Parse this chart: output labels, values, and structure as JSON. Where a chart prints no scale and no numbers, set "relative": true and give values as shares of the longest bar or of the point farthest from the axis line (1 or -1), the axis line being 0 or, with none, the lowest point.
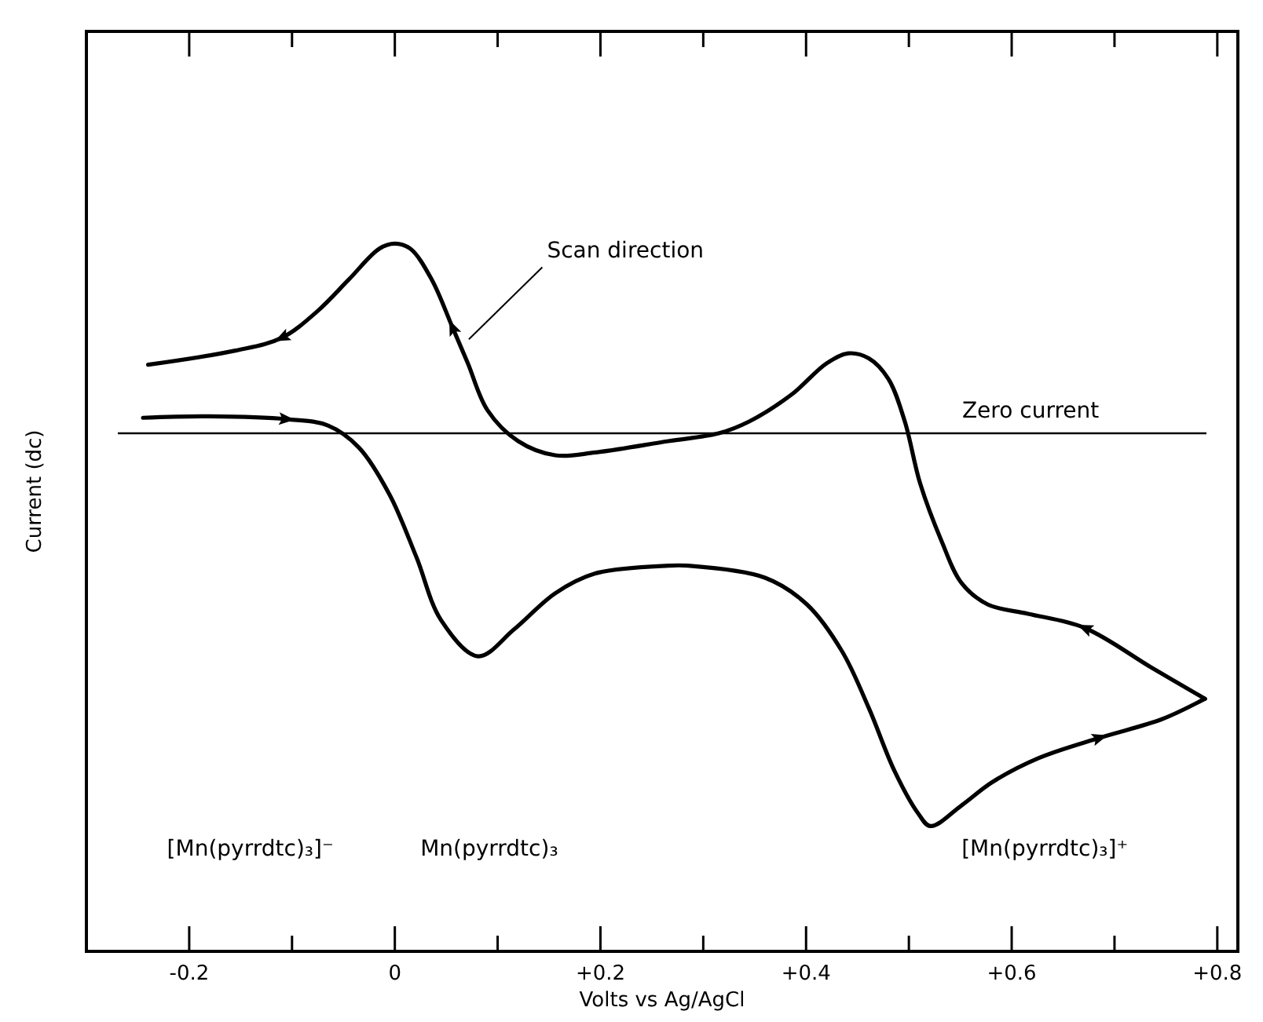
{
  "chart_data": {
    "type": "line",
    "relative": true,
    "xlabel": "Volts vs Ag/AgCl",
    "ylabel": "Current (dc)",
    "xlim": [
      -0.3,
      0.82
    ],
    "xticks": [
      {
        "value": -0.2,
        "label": "-0.2"
      },
      {
        "value": -0.1,
        "label": null
      },
      0,
      {
        "value": 0.1,
        "label": null
      },
      {
        "value": 0.2,
        "label": "+0.2"
      },
      {
        "value": 0.3,
        "label": null
      },
      {
        "value": 0.4,
        "label": "+0.4"
      },
      {
        "value": 0.5,
        "label": null
      },
      {
        "value": 0.6,
        "label": "+0.6"
      },
      {
        "value": 0.7,
        "label": null
      },
      {
        "value": 0.8,
        "label": "+0.8"
      }
    ],
    "series": [
      {
        "color": "#000000",
        "x": [
          0.788,
          0.736,
          0.671,
          0.616,
          0.577,
          0.551,
          0.532,
          0.511,
          0.496,
          0.48,
          0.461,
          0.441,
          0.42,
          0.386,
          0.345,
          0.315,
          0.266,
          0.195,
          0.156,
          0.12,
          0.09,
          0.071,
          0.056,
          0.036,
          0.015,
          0,
          -0.015,
          -0.045,
          -0.075,
          -0.11,
          -0.155,
          -0.24
        ],
        "values": [
          0.357,
          0.401,
          0.457,
          0.477,
          0.49,
          0.521,
          0.579,
          0.661,
          0.749,
          0.809,
          0.838,
          0.845,
          0.831,
          0.787,
          0.749,
          0.732,
          0.721,
          0.705,
          0.701,
          0.721,
          0.765,
          0.831,
          0.882,
          0.949,
          0.993,
          1,
          0.993,
          0.949,
          0.905,
          0.867,
          0.849,
          0.829
        ]
      },
      {
        "color": "#000000",
        "x": [
          -0.245,
          -0.18,
          -0.105,
          -0.065,
          -0.035,
          -0.005,
          0.021,
          0.045,
          0.081,
          0.116,
          0.156,
          0.195,
          0.266,
          0.285,
          0.36,
          0.401,
          0.435,
          0.461,
          0.486,
          0.509,
          0.521,
          0.551,
          0.581,
          0.626,
          0.686,
          0.746,
          0.788
        ],
        "values": [
          0.754,
          0.756,
          0.752,
          0.743,
          0.712,
          0.645,
          0.557,
          0.468,
          0.417,
          0.455,
          0.506,
          0.534,
          0.545,
          0.545,
          0.528,
          0.49,
          0.424,
          0.344,
          0.255,
          0.195,
          0.177,
          0.206,
          0.239,
          0.273,
          0.302,
          0.328,
          0.357
        ]
      }
    ],
    "marker": "none",
    "line_style": "solid",
    "grid": false,
    "ref_lines": [
      {
        "axis": "y",
        "value": 0.732,
        "label": "Zero current",
        "color": "#000000"
      }
    ],
    "annotations": [
      "Scan direction",
      "[Mn(pyrrdtc)₃]⁻",
      "Mn(pyrrdtc)₃",
      "[Mn(pyrrdtc)₃]⁺"
    ]
  }
}
